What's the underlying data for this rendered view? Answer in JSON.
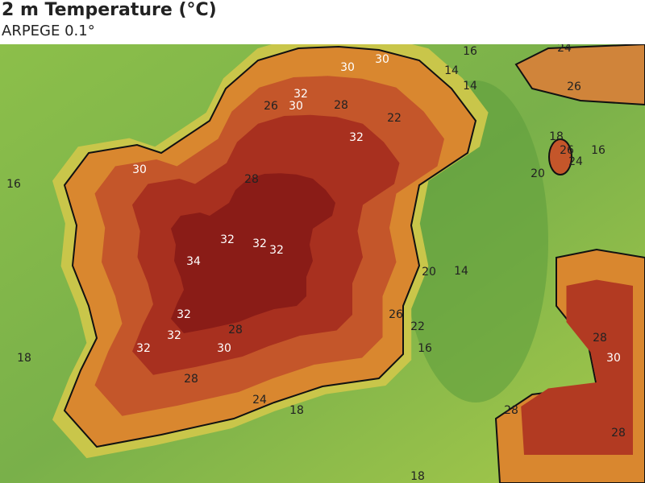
{
  "header": {
    "title": "2 m Temperature (°C)",
    "subtitle": "ARPEGE 0.1°"
  },
  "contour_labels": [
    30,
    30,
    32,
    30,
    26,
    28,
    22,
    32,
    16,
    14,
    14,
    24,
    26,
    18,
    26,
    16,
    24,
    20,
    30,
    28,
    16,
    32,
    32,
    32,
    34,
    20,
    14,
    32,
    26,
    32,
    28,
    22,
    28,
    32,
    30,
    16,
    30,
    18,
    28,
    24,
    18,
    28,
    28,
    18
  ]
}
